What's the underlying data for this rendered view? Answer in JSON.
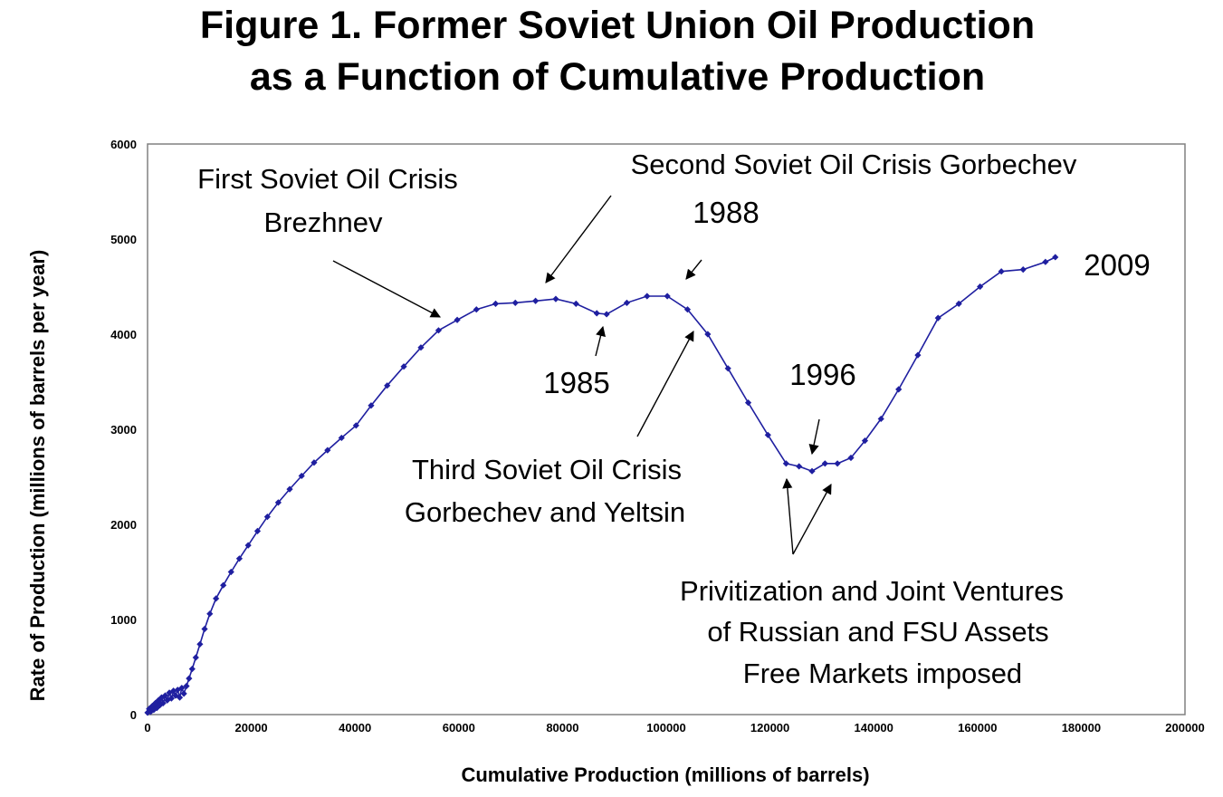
{
  "chart_data": {
    "type": "line",
    "title_line1": "Figure 1.  Former Soviet Union Oil Production",
    "title_line2": "as a Function of Cumulative Production",
    "xlabel": "Cumulative Production (millions of barrels)",
    "ylabel": "Rate of Production (millions of barrels per year)",
    "xlim": [
      0,
      200000
    ],
    "ylim": [
      0,
      6000
    ],
    "x_ticks": [
      0,
      20000,
      40000,
      60000,
      80000,
      100000,
      120000,
      140000,
      160000,
      180000,
      200000
    ],
    "y_ticks": [
      0,
      1000,
      2000,
      3000,
      4000,
      5000,
      6000
    ],
    "series_color": "#1f1fa0",
    "series": [
      {
        "x": [
          0,
          300,
          600,
          900,
          1200,
          1500,
          1800,
          2100,
          2400,
          2700,
          3000,
          3400,
          3800,
          4200,
          4600,
          5000,
          5400,
          5800,
          6200,
          6600,
          7000,
          7500,
          8000,
          8600,
          9300,
          10100,
          11000,
          12000,
          13200,
          14600,
          16100,
          17700,
          19400,
          21200,
          23100,
          25200,
          27400,
          29700,
          32100,
          34700,
          37400,
          40200,
          43100,
          46200,
          49400,
          52700,
          56100,
          59700,
          63400,
          67100,
          70900,
          74800,
          78700,
          82600,
          86600,
          88500,
          92400,
          96300,
          100200,
          104100,
          108000,
          111900,
          115800,
          119600,
          123100,
          125600,
          128100,
          130600,
          133000,
          135600,
          138300,
          141400,
          144800,
          148500,
          152400,
          156400,
          160500,
          164600,
          168800,
          173100,
          175000
        ],
        "y": [
          20,
          60,
          30,
          90,
          50,
          120,
          70,
          150,
          100,
          180,
          120,
          200,
          150,
          230,
          170,
          250,
          200,
          260,
          180,
          280,
          220,
          300,
          380,
          480,
          600,
          740,
          900,
          1060,
          1220,
          1360,
          1500,
          1640,
          1780,
          1930,
          2080,
          2230,
          2370,
          2510,
          2650,
          2780,
          2910,
          3040,
          3250,
          3460,
          3660,
          3860,
          4040,
          4150,
          4260,
          4320,
          4330,
          4350,
          4370,
          4320,
          4220,
          4210,
          4330,
          4400,
          4400,
          4260,
          4000,
          3640,
          3280,
          2940,
          2640,
          2610,
          2560,
          2640,
          2640,
          2700,
          2880,
          3110,
          3420,
          3780,
          4170,
          4320,
          4500,
          4660,
          4680,
          4760,
          4810
        ]
      }
    ],
    "annotations": {
      "first_crisis_line1": "First Soviet Oil Crisis",
      "first_crisis_line2": "Brezhnev",
      "second_crisis": "Second Soviet Oil Crisis Gorbechev",
      "year_1988": "1988",
      "year_2009": "2009",
      "year_1985": "1985",
      "year_1996": "1996",
      "third_crisis_line1": "Third Soviet Oil Crisis",
      "third_crisis_line2": "Gorbechev and Yeltsin",
      "priv_line1": "Privitization and Joint Ventures",
      "priv_line2": "of Russian and FSU Assets",
      "priv_line3": "Free Markets imposed"
    }
  }
}
